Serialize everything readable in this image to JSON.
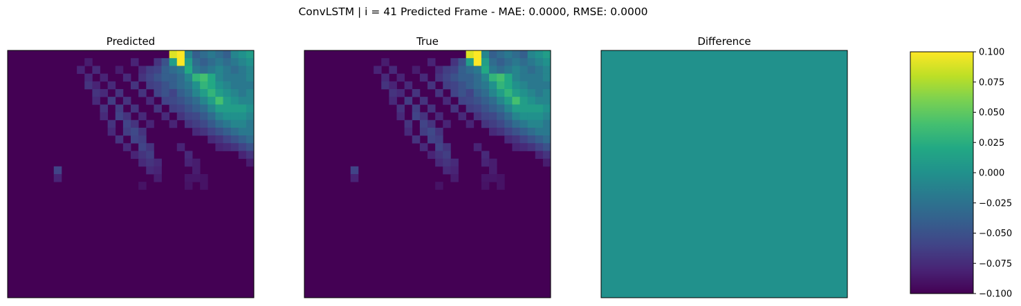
{
  "figure": {
    "suptitle": "ConvLSTM | i = 41 Predicted Frame - MAE: 0.0000, RMSE: 0.0000"
  },
  "chart_data": [
    {
      "type": "heatmap",
      "title": "Predicted",
      "grid_size": [
        32,
        32
      ],
      "axes_ticks": false,
      "colormap": "viridis",
      "background_value": 0.0,
      "nonzero_cells": [
        [
          0,
          21,
          0.95
        ],
        [
          0,
          22,
          1.0
        ],
        [
          0,
          23,
          0.45
        ],
        [
          0,
          24,
          0.3
        ],
        [
          0,
          25,
          0.35
        ],
        [
          0,
          26,
          0.4
        ],
        [
          0,
          27,
          0.35
        ],
        [
          0,
          28,
          0.3
        ],
        [
          0,
          29,
          0.45
        ],
        [
          0,
          30,
          0.5
        ],
        [
          0,
          31,
          0.55
        ],
        [
          1,
          10,
          0.08
        ],
        [
          1,
          16,
          0.1
        ],
        [
          1,
          19,
          0.15
        ],
        [
          1,
          20,
          0.25
        ],
        [
          1,
          21,
          0.55
        ],
        [
          1,
          22,
          1.0
        ],
        [
          1,
          23,
          0.55
        ],
        [
          1,
          24,
          0.35
        ],
        [
          1,
          25,
          0.3
        ],
        [
          1,
          26,
          0.35
        ],
        [
          1,
          27,
          0.4
        ],
        [
          1,
          28,
          0.35
        ],
        [
          1,
          29,
          0.4
        ],
        [
          1,
          30,
          0.45
        ],
        [
          1,
          31,
          0.5
        ],
        [
          2,
          9,
          0.1
        ],
        [
          2,
          11,
          0.12
        ],
        [
          2,
          14,
          0.08
        ],
        [
          2,
          17,
          0.12
        ],
        [
          2,
          18,
          0.18
        ],
        [
          2,
          19,
          0.2
        ],
        [
          2,
          20,
          0.3
        ],
        [
          2,
          21,
          0.35
        ],
        [
          2,
          22,
          0.4
        ],
        [
          2,
          23,
          0.6
        ],
        [
          2,
          24,
          0.4
        ],
        [
          2,
          25,
          0.35
        ],
        [
          2,
          26,
          0.4
        ],
        [
          2,
          27,
          0.45
        ],
        [
          2,
          28,
          0.4
        ],
        [
          2,
          29,
          0.35
        ],
        [
          2,
          30,
          0.4
        ],
        [
          2,
          31,
          0.45
        ],
        [
          3,
          10,
          0.12
        ],
        [
          3,
          12,
          0.1
        ],
        [
          3,
          15,
          0.12
        ],
        [
          3,
          17,
          0.15
        ],
        [
          3,
          18,
          0.2
        ],
        [
          3,
          19,
          0.25
        ],
        [
          3,
          20,
          0.3
        ],
        [
          3,
          21,
          0.3
        ],
        [
          3,
          22,
          0.35
        ],
        [
          3,
          23,
          0.45
        ],
        [
          3,
          24,
          0.65
        ],
        [
          3,
          25,
          0.7
        ],
        [
          3,
          26,
          0.6
        ],
        [
          3,
          27,
          0.45
        ],
        [
          3,
          28,
          0.4
        ],
        [
          3,
          29,
          0.4
        ],
        [
          3,
          30,
          0.4
        ],
        [
          3,
          31,
          0.45
        ],
        [
          4,
          10,
          0.15
        ],
        [
          4,
          11,
          0.1
        ],
        [
          4,
          13,
          0.12
        ],
        [
          4,
          16,
          0.15
        ],
        [
          4,
          18,
          0.18
        ],
        [
          4,
          19,
          0.2
        ],
        [
          4,
          20,
          0.25
        ],
        [
          4,
          21,
          0.3
        ],
        [
          4,
          22,
          0.35
        ],
        [
          4,
          23,
          0.4
        ],
        [
          4,
          24,
          0.5
        ],
        [
          4,
          25,
          0.65
        ],
        [
          4,
          26,
          0.6
        ],
        [
          4,
          27,
          0.5
        ],
        [
          4,
          28,
          0.45
        ],
        [
          4,
          29,
          0.4
        ],
        [
          4,
          30,
          0.4
        ],
        [
          4,
          31,
          0.4
        ],
        [
          5,
          11,
          0.15
        ],
        [
          5,
          12,
          0.12
        ],
        [
          5,
          14,
          0.15
        ],
        [
          5,
          17,
          0.15
        ],
        [
          5,
          19,
          0.2
        ],
        [
          5,
          20,
          0.25
        ],
        [
          5,
          21,
          0.2
        ],
        [
          5,
          22,
          0.3
        ],
        [
          5,
          23,
          0.35
        ],
        [
          5,
          24,
          0.45
        ],
        [
          5,
          25,
          0.55
        ],
        [
          5,
          26,
          0.65
        ],
        [
          5,
          27,
          0.55
        ],
        [
          5,
          28,
          0.5
        ],
        [
          5,
          29,
          0.45
        ],
        [
          5,
          30,
          0.4
        ],
        [
          5,
          31,
          0.45
        ],
        [
          6,
          11,
          0.12
        ],
        [
          6,
          13,
          0.18
        ],
        [
          6,
          15,
          0.15
        ],
        [
          6,
          18,
          0.12
        ],
        [
          6,
          20,
          0.2
        ],
        [
          6,
          21,
          0.22
        ],
        [
          6,
          22,
          0.25
        ],
        [
          6,
          23,
          0.3
        ],
        [
          6,
          24,
          0.35
        ],
        [
          6,
          25,
          0.45
        ],
        [
          6,
          26,
          0.55
        ],
        [
          6,
          27,
          0.7
        ],
        [
          6,
          28,
          0.55
        ],
        [
          6,
          29,
          0.5
        ],
        [
          6,
          30,
          0.45
        ],
        [
          6,
          31,
          0.45
        ],
        [
          7,
          12,
          0.15
        ],
        [
          7,
          14,
          0.18
        ],
        [
          7,
          16,
          0.15
        ],
        [
          7,
          19,
          0.15
        ],
        [
          7,
          21,
          0.18
        ],
        [
          7,
          22,
          0.2
        ],
        [
          7,
          23,
          0.25
        ],
        [
          7,
          24,
          0.3
        ],
        [
          7,
          25,
          0.35
        ],
        [
          7,
          26,
          0.45
        ],
        [
          7,
          27,
          0.55
        ],
        [
          7,
          28,
          0.55
        ],
        [
          7,
          29,
          0.55
        ],
        [
          7,
          30,
          0.55
        ],
        [
          7,
          31,
          0.5
        ],
        [
          8,
          12,
          0.12
        ],
        [
          8,
          14,
          0.2
        ],
        [
          8,
          15,
          0.15
        ],
        [
          8,
          17,
          0.12
        ],
        [
          8,
          20,
          0.12
        ],
        [
          8,
          22,
          0.15
        ],
        [
          8,
          23,
          0.2
        ],
        [
          8,
          24,
          0.22
        ],
        [
          8,
          25,
          0.28
        ],
        [
          8,
          26,
          0.35
        ],
        [
          8,
          27,
          0.45
        ],
        [
          8,
          28,
          0.5
        ],
        [
          8,
          29,
          0.5
        ],
        [
          8,
          30,
          0.5
        ],
        [
          8,
          31,
          0.45
        ],
        [
          9,
          13,
          0.15
        ],
        [
          9,
          15,
          0.2
        ],
        [
          9,
          16,
          0.15
        ],
        [
          9,
          18,
          0.1
        ],
        [
          9,
          21,
          0.1
        ],
        [
          9,
          23,
          0.15
        ],
        [
          9,
          24,
          0.18
        ],
        [
          9,
          25,
          0.22
        ],
        [
          9,
          26,
          0.28
        ],
        [
          9,
          27,
          0.35
        ],
        [
          9,
          28,
          0.4
        ],
        [
          9,
          29,
          0.45
        ],
        [
          9,
          30,
          0.45
        ],
        [
          9,
          31,
          0.4
        ],
        [
          10,
          13,
          0.12
        ],
        [
          10,
          15,
          0.18
        ],
        [
          10,
          16,
          0.22
        ],
        [
          10,
          17,
          0.15
        ],
        [
          10,
          24,
          0.12
        ],
        [
          10,
          25,
          0.15
        ],
        [
          10,
          26,
          0.2
        ],
        [
          10,
          27,
          0.25
        ],
        [
          10,
          28,
          0.3
        ],
        [
          10,
          29,
          0.35
        ],
        [
          10,
          30,
          0.4
        ],
        [
          10,
          31,
          0.4
        ],
        [
          11,
          14,
          0.15
        ],
        [
          11,
          16,
          0.2
        ],
        [
          11,
          17,
          0.18
        ],
        [
          11,
          26,
          0.12
        ],
        [
          11,
          27,
          0.15
        ],
        [
          11,
          28,
          0.2
        ],
        [
          11,
          29,
          0.25
        ],
        [
          11,
          30,
          0.3
        ],
        [
          11,
          31,
          0.35
        ],
        [
          12,
          15,
          0.12
        ],
        [
          12,
          17,
          0.2
        ],
        [
          12,
          18,
          0.15
        ],
        [
          12,
          22,
          0.1
        ],
        [
          12,
          27,
          0.1
        ],
        [
          12,
          28,
          0.12
        ],
        [
          12,
          29,
          0.15
        ],
        [
          12,
          30,
          0.2
        ],
        [
          12,
          31,
          0.25
        ],
        [
          13,
          16,
          0.1
        ],
        [
          13,
          17,
          0.15
        ],
        [
          13,
          18,
          0.18
        ],
        [
          13,
          23,
          0.12
        ],
        [
          13,
          30,
          0.1
        ],
        [
          13,
          31,
          0.15
        ],
        [
          14,
          17,
          0.12
        ],
        [
          14,
          18,
          0.15
        ],
        [
          14,
          19,
          0.12
        ],
        [
          14,
          23,
          0.1
        ],
        [
          14,
          24,
          0.08
        ],
        [
          14,
          31,
          0.08
        ],
        [
          15,
          6,
          0.2
        ],
        [
          15,
          18,
          0.12
        ],
        [
          15,
          19,
          0.1
        ],
        [
          15,
          24,
          0.08
        ],
        [
          16,
          6,
          0.1
        ],
        [
          16,
          19,
          0.08
        ],
        [
          16,
          23,
          0.06
        ],
        [
          16,
          24,
          0.06
        ],
        [
          16,
          25,
          0.05
        ],
        [
          17,
          17,
          0.05
        ],
        [
          17,
          23,
          0.05
        ],
        [
          17,
          25,
          0.05
        ]
      ]
    },
    {
      "type": "heatmap",
      "title": "True",
      "grid_size": [
        32,
        32
      ],
      "axes_ticks": false,
      "colormap": "viridis",
      "same_values_as": "Predicted"
    },
    {
      "type": "heatmap",
      "title": "Difference",
      "grid_size": [
        32,
        32
      ],
      "axes_ticks": false,
      "colormap": "viridis",
      "uniform_value": 0.0,
      "vmin": -0.1,
      "vmax": 0.1
    }
  ],
  "colorbar": {
    "colormap": "viridis",
    "vmin": -0.1,
    "vmax": 0.1,
    "ticks": [
      0.1,
      0.075,
      0.05,
      0.025,
      0.0,
      -0.025,
      -0.05,
      -0.075,
      -0.1
    ],
    "tick_labels": [
      "0.100",
      "0.075",
      "0.050",
      "0.025",
      "0.000",
      "−0.025",
      "−0.050",
      "−0.075",
      "−0.100"
    ]
  }
}
